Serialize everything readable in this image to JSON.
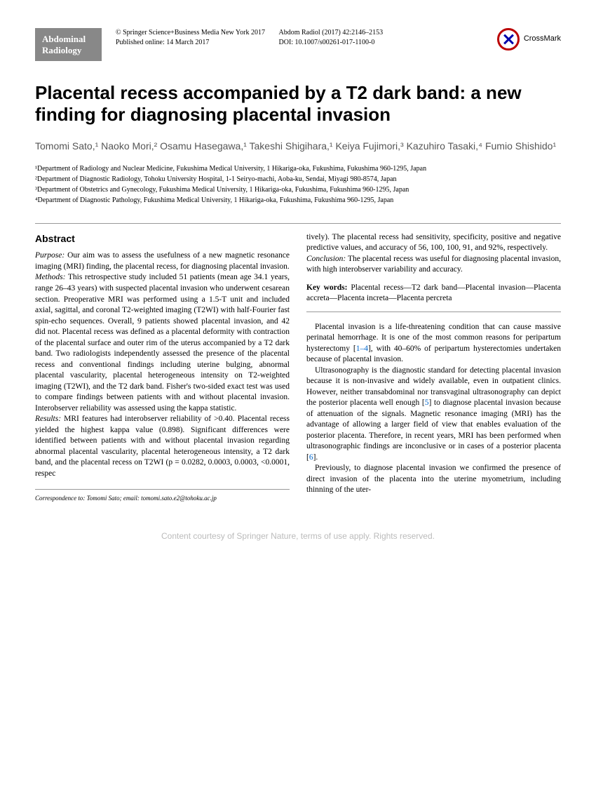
{
  "journal_badge": {
    "line1": "Abdominal",
    "line2": "Radiology"
  },
  "publisher": {
    "copyright": "© Springer Science+Business Media New York 2017",
    "published": "Published online: 14 March 2017",
    "citation": "Abdom Radiol (2017) 42:2146–2153",
    "doi": "DOI: 10.1007/s00261-017-1100-0"
  },
  "crossmark": "CrossMark",
  "title": "Placental recess accompanied by a T2 dark band: a new finding for diagnosing placental invasion",
  "authors": "Tomomi Sato,¹ Naoko Mori,² Osamu Hasegawa,¹ Takeshi Shigihara,¹ Keiya Fujimori,³ Kazuhiro Tasaki,⁴ Fumio Shishido¹",
  "affiliations": {
    "a1": "¹Department of Radiology and Nuclear Medicine, Fukushima Medical University, 1 Hikariga-oka, Fukushima, Fukushima 960-1295, Japan",
    "a2": "²Department of Diagnostic Radiology, Tohoku University Hospital, 1-1 Seiryo-machi, Aoba-ku, Sendai, Miyagi 980-8574, Japan",
    "a3": "³Department of Obstetrics and Gynecology, Fukushima Medical University, 1 Hikariga-oka, Fukushima, Fukushima 960-1295, Japan",
    "a4": "⁴Department of Diagnostic Pathology, Fukushima Medical University, 1 Hikariga-oka, Fukushima, Fukushima 960-1295, Japan"
  },
  "abstract_heading": "Abstract",
  "abstract": {
    "purpose_label": "Purpose:",
    "purpose_text": " Our aim was to assess the usefulness of a new magnetic resonance imaging (MRI) finding, the placental recess, for diagnosing placental invasion.",
    "methods_label": "Methods:",
    "methods_text": " This retrospective study included 51 patients (mean age 34.1 years, range 26–43 years) with suspected placental invasion who underwent cesarean section. Preoperative MRI was performed using a 1.5-T unit and included axial, sagittal, and coronal T2-weighted imaging (T2WI) with half-Fourier fast spin-echo sequences. Overall, 9 patients showed placental invasion, and 42 did not. Placental recess was defined as a placental deformity with contraction of the placental surface and outer rim of the uterus accompanied by a T2 dark band. Two radiologists independently assessed the presence of the placental recess and conventional findings including uterine bulging, abnormal placental vascularity, placental heterogeneous intensity on T2-weighted imaging (T2WI), and the T2 dark band. Fisher's two-sided exact test was used to compare findings between patients with and without placental invasion. Interobserver reliability was assessed using the kappa statistic.",
    "results_label": "Results:",
    "results_text_a": " MRI features had interobserver reliability of >0.40. Placental recess yielded the highest kappa value (0.898). Significant differences were identified between patients with and without placental invasion regarding abnormal placental vascularity, placental heterogeneous intensity, a T2 dark band, and the placental recess on T2WI (p = 0.0282, 0.0003, 0.0003, <0.0001, respec",
    "results_text_b": "tively). The placental recess had sensitivity, specificity, positive and negative predictive values, and accuracy of 56, 100, 100, 91, and 92%, respectively.",
    "conclusion_label": "Conclusion:",
    "conclusion_text": " The placental recess was useful for diagnosing placental invasion, with high interobserver variability and accuracy."
  },
  "keywords_label": "Key words:",
  "keywords_text": " Placental recess—T2 dark band—Placental invasion—Placenta accreta—Placenta increta—Placenta percreta",
  "body": {
    "p1a": "Placental invasion is a life-threatening condition that can cause massive perinatal hemorrhage. It is one of the most common reasons for peripartum hysterectomy [",
    "p1ref1": "1–4",
    "p1b": "], with 40–60% of peripartum hysterectomies undertaken because of placental invasion.",
    "p2a": "Ultrasonography is the diagnostic standard for detecting placental invasion because it is non-invasive and widely available, even in outpatient clinics. However, neither transabdominal nor transvaginal ultrasonography can depict the posterior placenta well enough [",
    "p2ref": "5",
    "p2b": "] to diagnose placental invasion because of attenuation of the signals. Magnetic resonance imaging (MRI) has the advantage of allowing a larger field of view that enables evaluation of the posterior placenta. Therefore, in recent years, MRI has been performed when ultrasonographic findings are inconclusive or in cases of a posterior placenta [",
    "p2ref2": "6",
    "p2c": "].",
    "p3": "Previously, to diagnose placental invasion we confirmed the presence of direct invasion of the placenta into the uterine myometrium, including thinning of the uter-"
  },
  "correspondence": {
    "label": "Correspondence to:",
    "name": " Tomomi Sato; ",
    "email_label": "email:",
    "email": " tomomi.sato.e2@tohoku.ac.jp"
  },
  "footer": "Content courtesy of Springer Nature, terms of use apply. Rights reserved."
}
